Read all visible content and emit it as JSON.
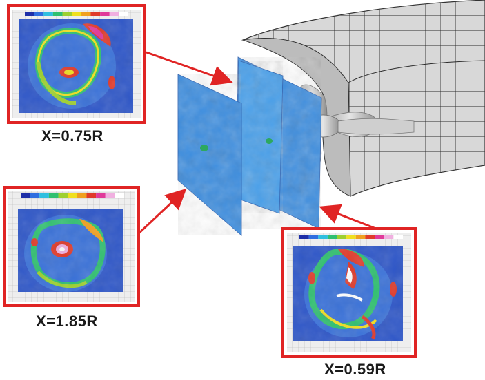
{
  "diagram": {
    "panels": [
      {
        "id": "panel-top-left",
        "label": "X=0.75R"
      },
      {
        "id": "panel-bottom-left",
        "label": "X=1.85R"
      },
      {
        "id": "panel-bottom-right",
        "label": "X=0.59R"
      }
    ],
    "colors": {
      "frame": "#e02424",
      "arrow": "#e02424",
      "field_background": "#2f57c8",
      "plane_fill": "#3f8fe0",
      "hull": "#cfcfcf",
      "propeller": "#bdbdbd"
    },
    "colorbar": [
      "#1e2fa8",
      "#2f6ee0",
      "#2fbfe0",
      "#30c070",
      "#9ed030",
      "#f0e020",
      "#f0a020",
      "#e03a2a",
      "#e03a9a",
      "#f0b0e0",
      "#ffffff"
    ]
  }
}
